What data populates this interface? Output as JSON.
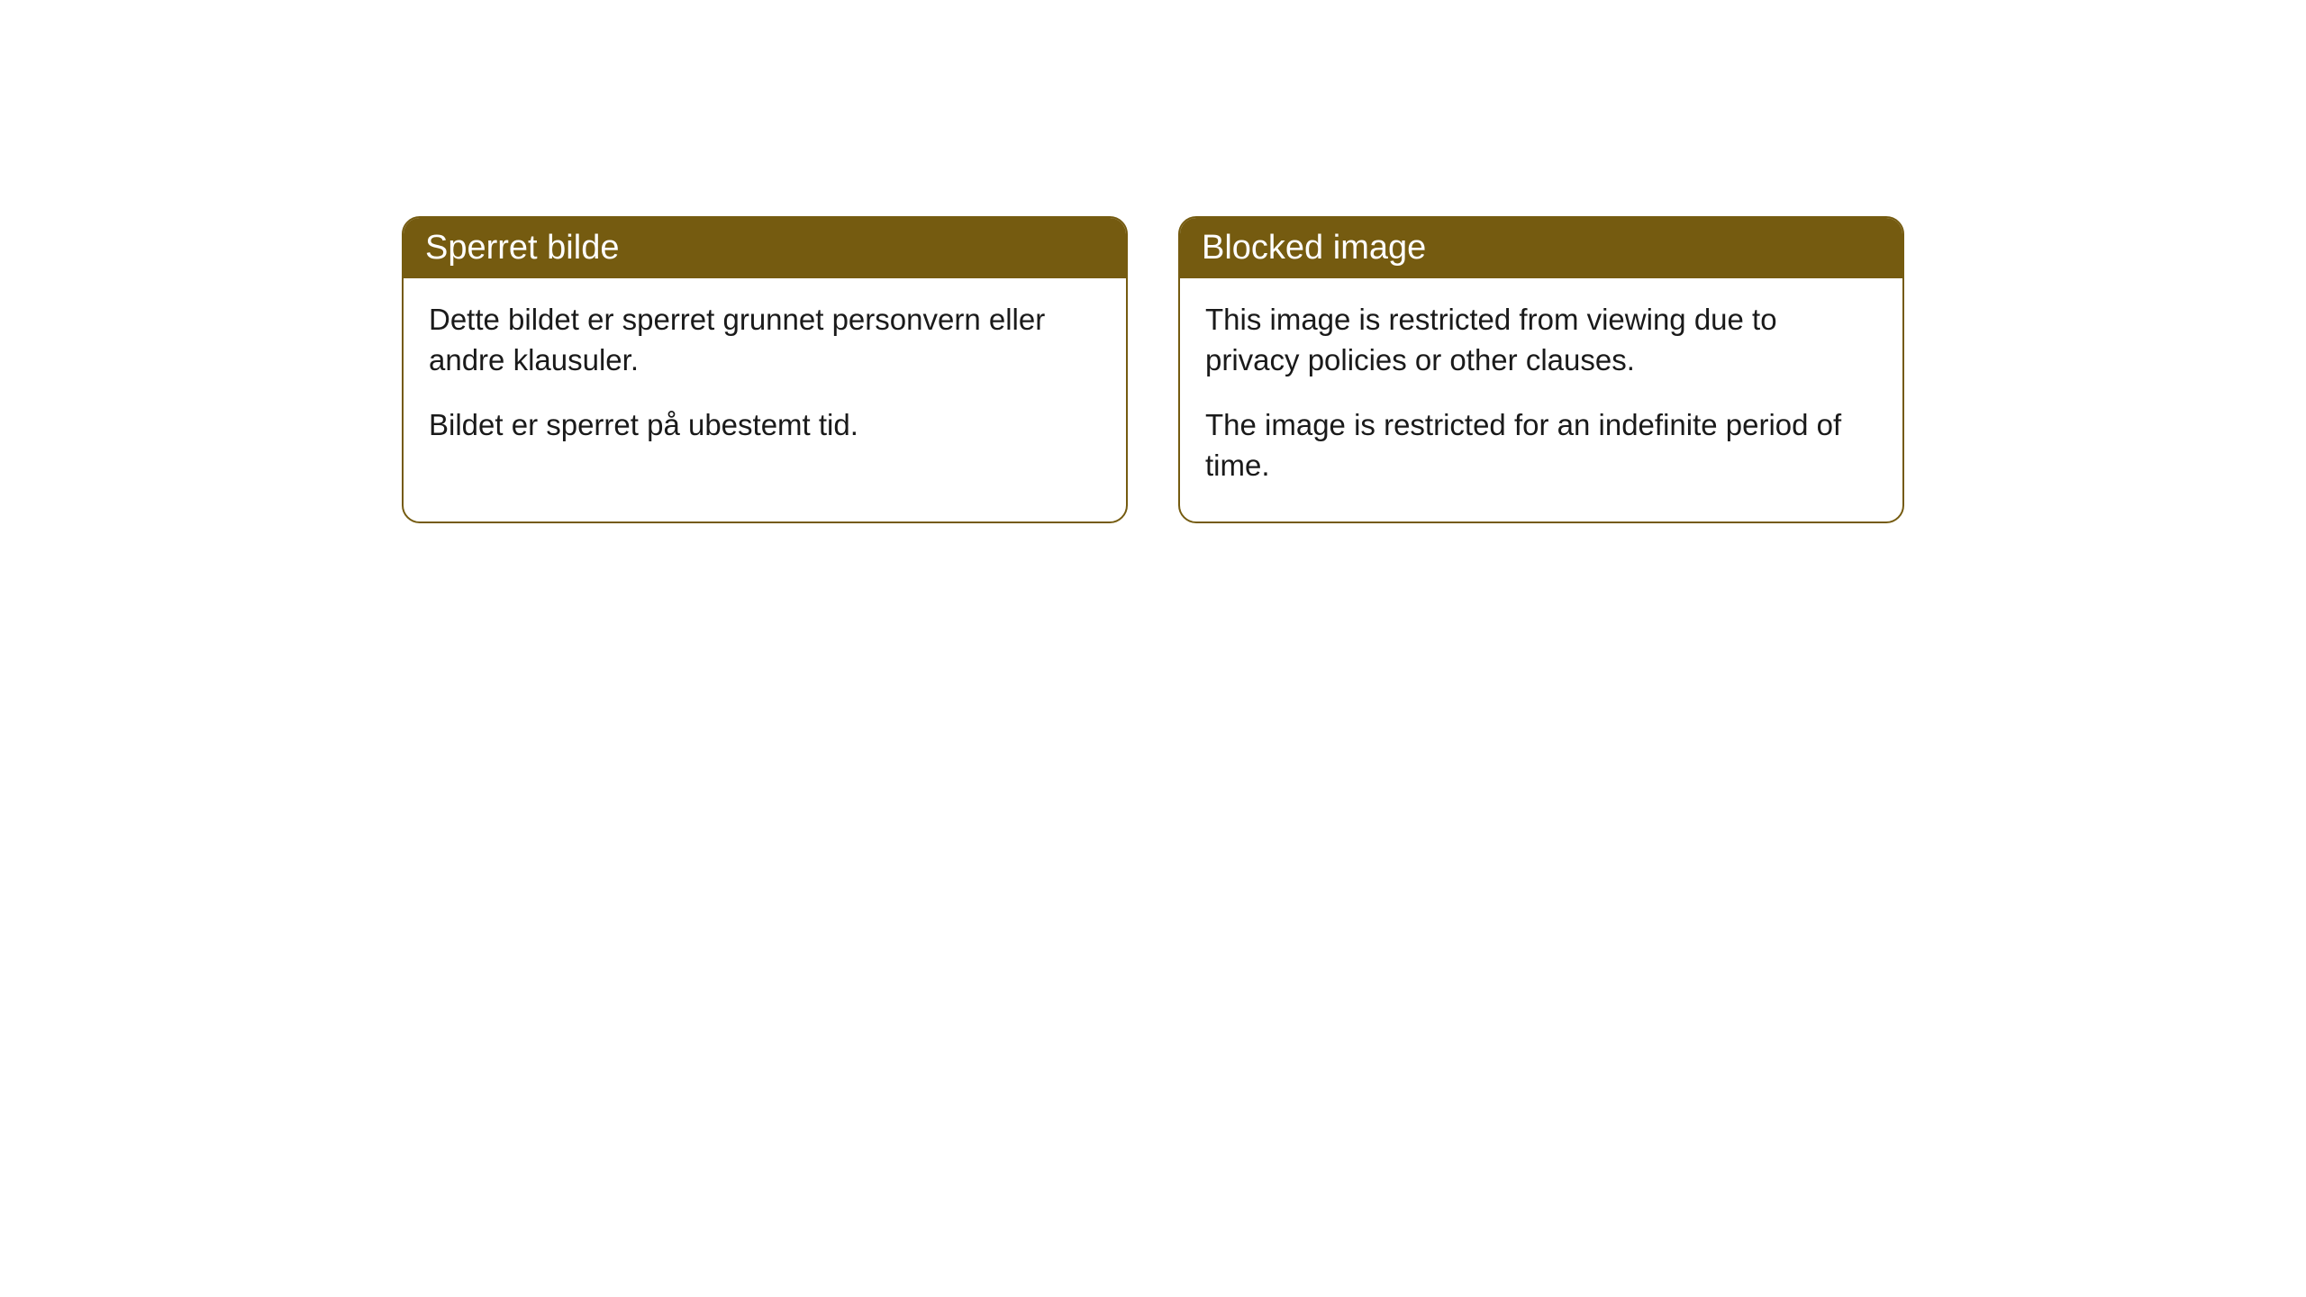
{
  "cards": [
    {
      "title": "Sperret bilde",
      "paragraph1": "Dette bildet er sperret grunnet personvern eller andre klausuler.",
      "paragraph2": "Bildet er sperret på ubestemt tid."
    },
    {
      "title": "Blocked image",
      "paragraph1": "This image is restricted from viewing due to privacy policies or other clauses.",
      "paragraph2": "The image is restricted for an indefinite period of time."
    }
  ],
  "styling": {
    "header_background": "#755b10",
    "header_text_color": "#ffffff",
    "border_color": "#755b10",
    "body_background": "#ffffff",
    "body_text_color": "#1a1a1a",
    "border_radius": 20,
    "header_fontsize": 38,
    "body_fontsize": 33
  }
}
